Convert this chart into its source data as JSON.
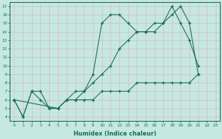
{
  "line1_x": [
    0,
    1,
    2,
    3,
    4,
    5,
    6,
    7,
    8,
    9,
    10,
    11,
    12,
    13,
    14,
    15,
    16,
    17,
    18,
    19,
    20,
    21
  ],
  "line1_y": [
    6,
    4,
    7,
    6,
    5,
    5,
    6,
    6,
    7,
    9,
    15,
    16,
    16,
    15,
    14,
    14,
    14,
    15,
    17,
    15,
    13,
    10
  ],
  "line2_x": [
    0,
    1,
    2,
    3,
    4,
    5,
    6,
    7,
    8,
    9,
    10,
    11,
    12,
    13,
    14,
    15,
    16,
    17,
    18,
    19,
    20,
    21
  ],
  "line2_y": [
    6,
    4,
    7,
    7,
    5,
    5,
    6,
    7,
    7,
    8,
    9,
    10,
    12,
    13,
    14,
    14,
    15,
    15,
    16,
    17,
    15,
    9
  ],
  "line3_x": [
    0,
    5,
    6,
    7,
    8,
    9,
    10,
    11,
    12,
    13,
    14,
    15,
    16,
    17,
    18,
    19,
    20,
    21
  ],
  "line3_y": [
    6,
    5,
    6,
    6,
    6,
    6,
    7,
    7,
    7,
    7,
    8,
    8,
    8,
    8,
    8,
    8,
    8,
    9
  ],
  "line_color": "#1a6b5a",
  "bg_color": "#c5e8e0",
  "grid_color": "#dbb8b8",
  "xlabel": "Humidex (Indice chaleur)",
  "ylim": [
    3.5,
    17.5
  ],
  "xlim": [
    -0.5,
    23.5
  ],
  "yticks": [
    4,
    5,
    6,
    7,
    8,
    9,
    10,
    11,
    12,
    13,
    14,
    15,
    16,
    17
  ],
  "xticks": [
    0,
    1,
    2,
    3,
    4,
    5,
    6,
    7,
    8,
    9,
    10,
    11,
    12,
    13,
    14,
    15,
    16,
    17,
    18,
    19,
    20,
    21,
    22,
    23
  ]
}
